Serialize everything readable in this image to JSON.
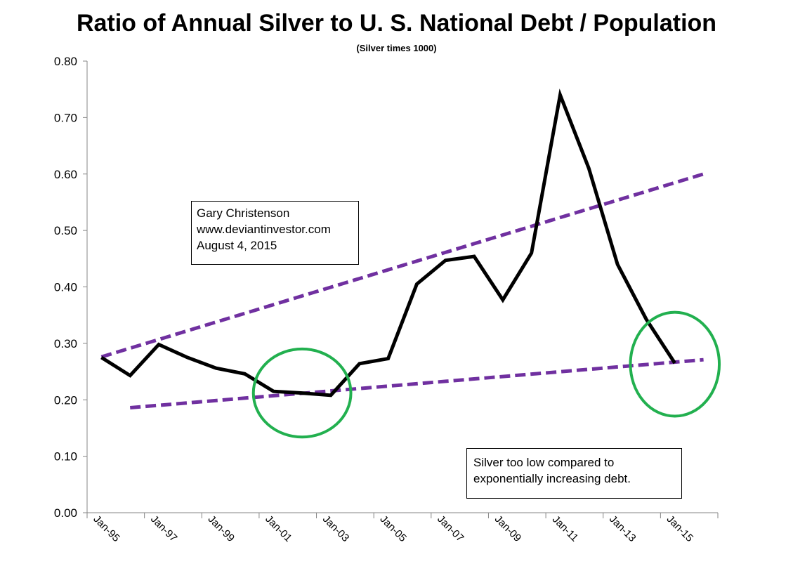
{
  "chart_data": {
    "type": "line",
    "title": "Ratio of Annual Silver to U. S. National Debt / Population",
    "subtitle": "(Silver times 1000)",
    "xlabel": "",
    "ylabel": "",
    "ylim": [
      0,
      0.8
    ],
    "yticks": [
      "0.00",
      "0.10",
      "0.20",
      "0.30",
      "0.40",
      "0.50",
      "0.60",
      "0.70",
      "0.80"
    ],
    "xticks": [
      "Jan-95",
      "Jan-97",
      "Jan-99",
      "Jan-01",
      "Jan-03",
      "Jan-05",
      "Jan-07",
      "Jan-09",
      "Jan-11",
      "Jan-13",
      "Jan-15"
    ],
    "grid": false,
    "legend": "none",
    "series": [
      {
        "color": "#000000",
        "x": [
          "Jan-95",
          "Jan-96",
          "Jan-97",
          "Jan-98",
          "Jan-99",
          "Jan-00",
          "Jan-01",
          "Jan-02",
          "Jan-03",
          "Jan-04",
          "Jan-05",
          "Jan-06",
          "Jan-07",
          "Jan-08",
          "Jan-09",
          "Jan-10",
          "Jan-11",
          "Jan-12",
          "Jan-13",
          "Jan-14",
          "Jan-15"
        ],
        "values": [
          0.275,
          0.243,
          0.298,
          0.275,
          0.256,
          0.246,
          0.215,
          0.212,
          0.208,
          0.264,
          0.273,
          0.405,
          0.447,
          0.454,
          0.377,
          0.46,
          0.74,
          0.61,
          0.44,
          0.343,
          0.265
        ]
      }
    ],
    "trendlines": [
      {
        "style": "dashed",
        "color": "#7030a0",
        "from": [
          "Jan-95",
          0.276
        ],
        "to": [
          "Jan-16",
          0.6
        ]
      },
      {
        "style": "dashed",
        "color": "#7030a0",
        "from": [
          "Jan-96",
          0.186
        ],
        "to": [
          "Jan-16",
          0.271
        ]
      }
    ],
    "highlights": [
      {
        "shape": "ellipse",
        "color": "#22b04f",
        "center": [
          "Jan-02",
          0.212
        ],
        "rx_years": 1.7,
        "ry": 0.078
      },
      {
        "shape": "ellipse",
        "color": "#22b04f",
        "center": [
          "Jan-15",
          0.263
        ],
        "rx_years": 1.55,
        "ry": 0.092
      }
    ],
    "annotations": [
      {
        "lines": [
          "Gary Christenson",
          "www.deviantinvestor.com",
          "August 4, 2015"
        ]
      },
      {
        "lines": [
          "Silver too low compared to",
          "exponentially increasing debt."
        ]
      }
    ]
  }
}
